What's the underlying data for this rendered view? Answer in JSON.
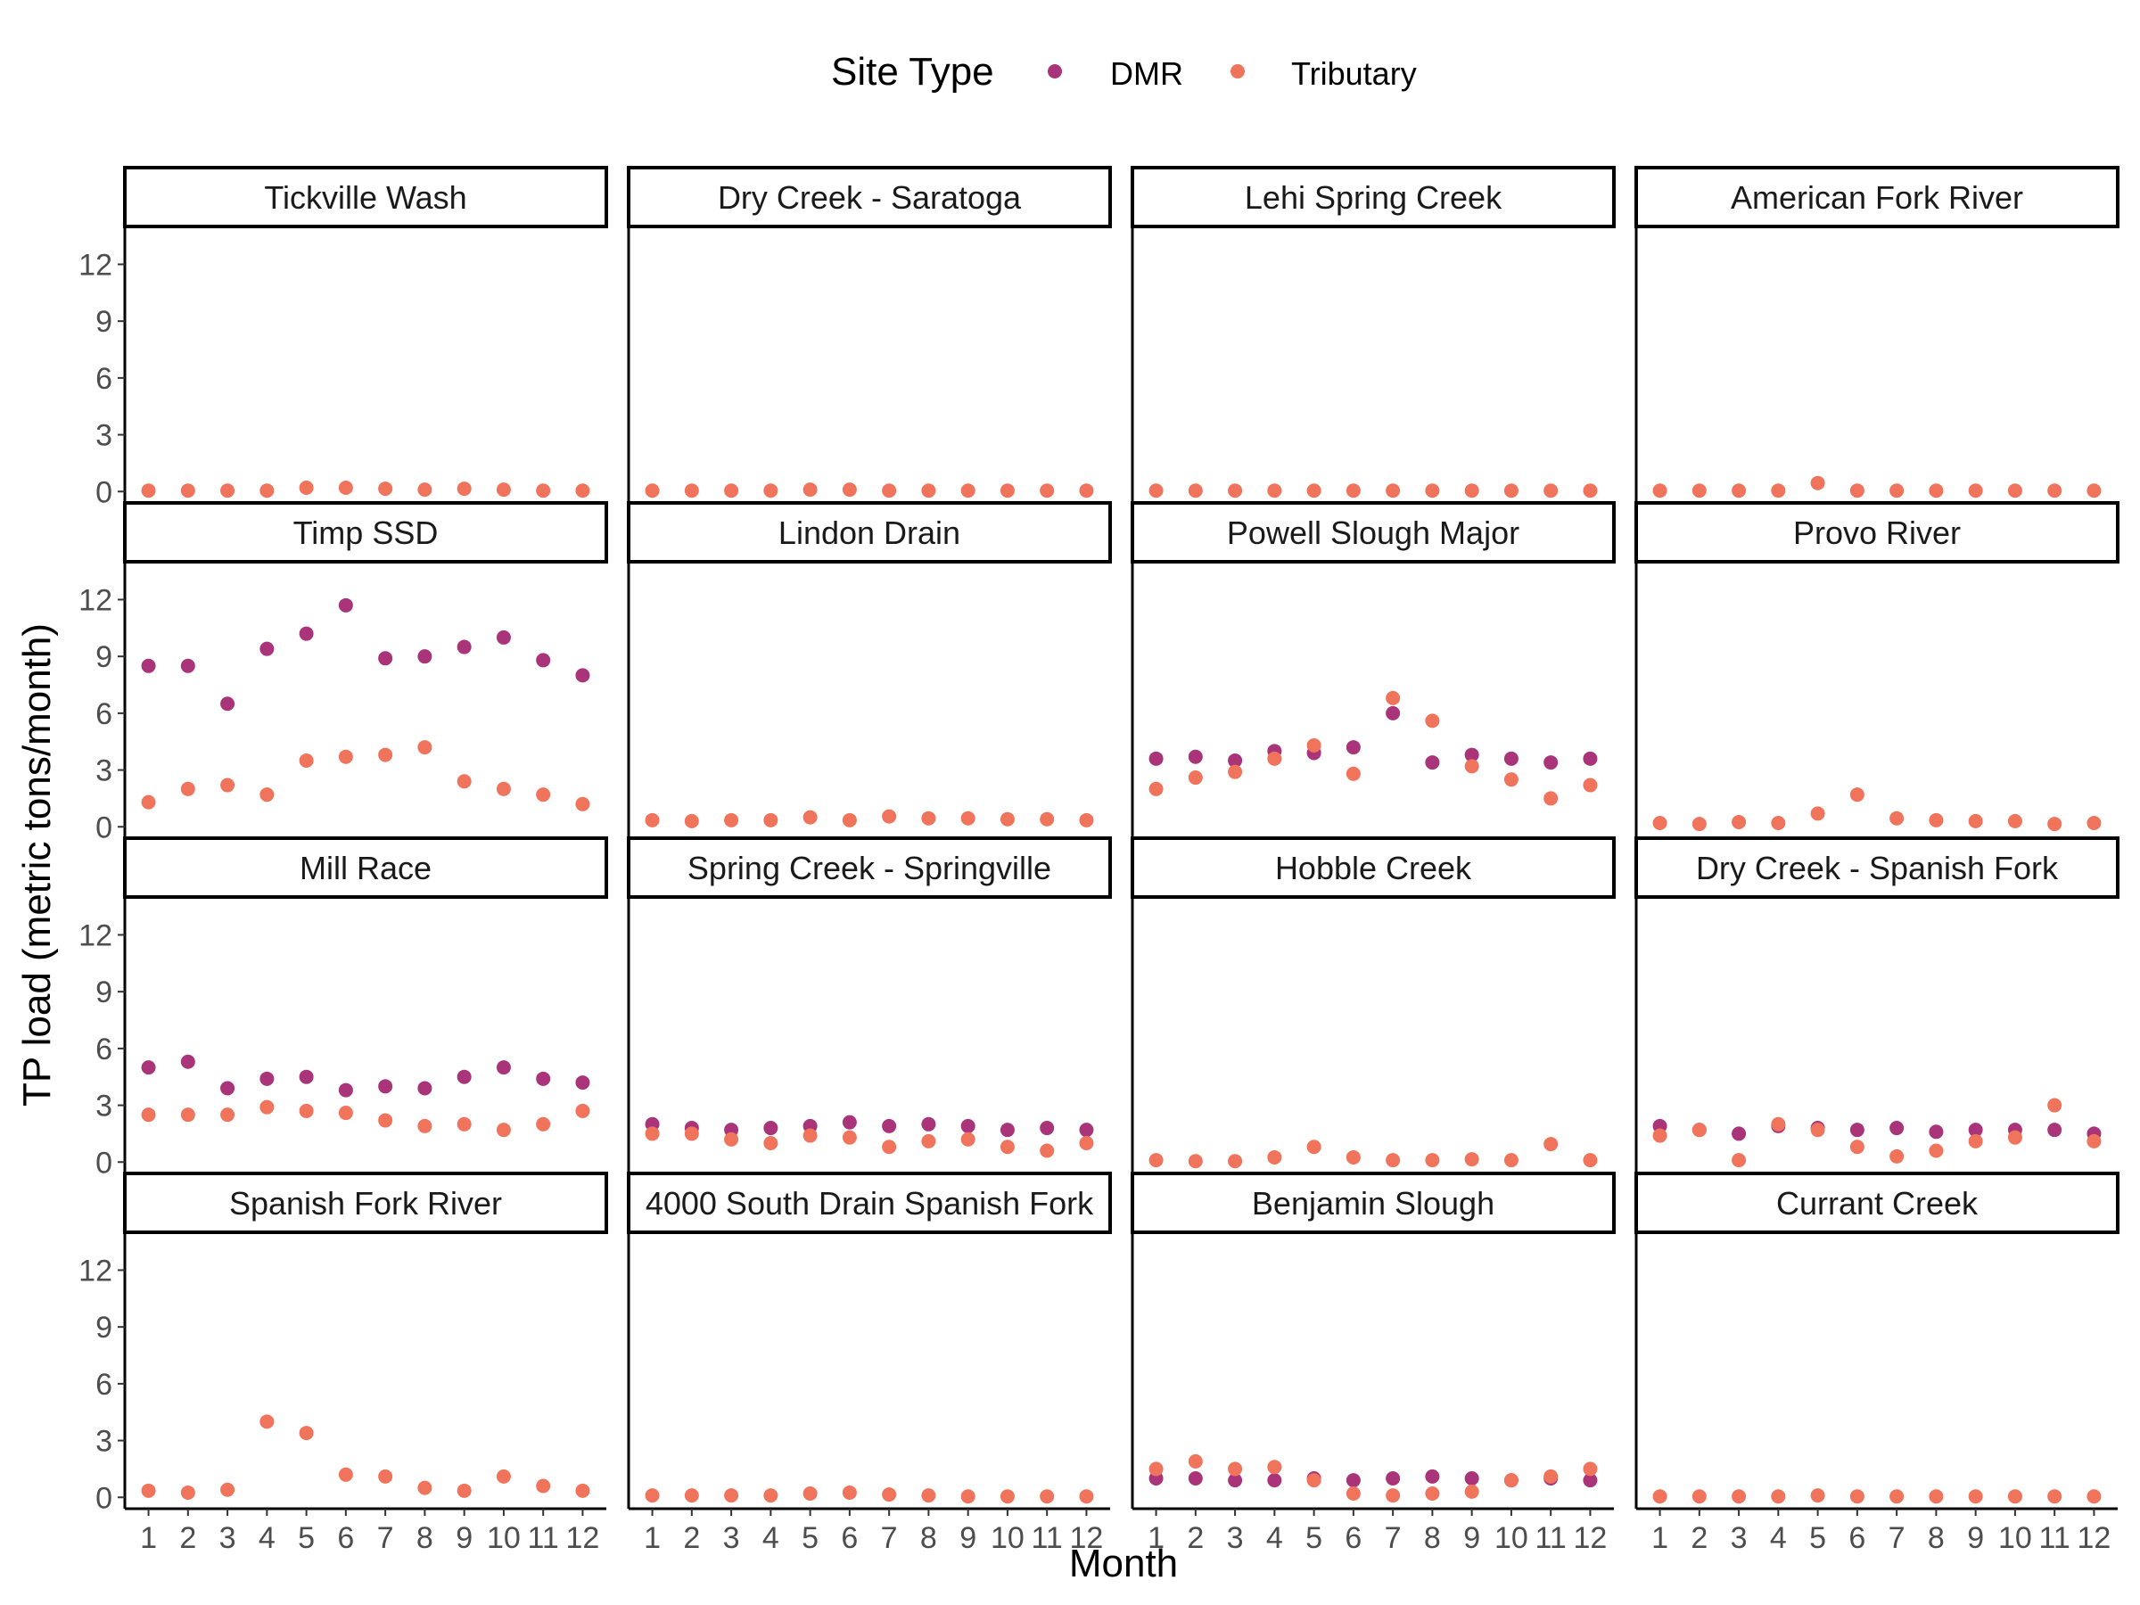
{
  "chart_data": {
    "type": "scatter",
    "xlabel": "Month",
    "ylabel": "TP load (metric tons/month)",
    "legend": {
      "title": "Site Type",
      "placement": "top",
      "entries": [
        {
          "name": "DMR",
          "color": "#A9347A"
        },
        {
          "name": "Tributary",
          "color": "#F0735C"
        }
      ]
    },
    "x_ticks": [
      "1",
      "2",
      "3",
      "4",
      "5",
      "6",
      "7",
      "8",
      "9",
      "10",
      "11",
      "12"
    ],
    "y_ticks": [
      "0",
      "3",
      "6",
      "9",
      "12"
    ],
    "ylim": [
      -0.6,
      14
    ],
    "xlim": [
      0.4,
      12.6
    ],
    "grid": false,
    "facet_columns": 4,
    "panels": [
      {
        "title": "Tickville Wash",
        "series": [
          {
            "name": "DMR",
            "values": []
          },
          {
            "name": "Tributary",
            "values": [
              0.05,
              0.05,
              0.05,
              0.05,
              0.2,
              0.2,
              0.15,
              0.1,
              0.15,
              0.1,
              0.05,
              0.05
            ]
          }
        ]
      },
      {
        "title": "Dry Creek - Saratoga",
        "series": [
          {
            "name": "DMR",
            "values": []
          },
          {
            "name": "Tributary",
            "values": [
              0.05,
              0.05,
              0.05,
              0.05,
              0.1,
              0.1,
              0.05,
              0.05,
              0.05,
              0.05,
              0.05,
              0.05
            ]
          }
        ]
      },
      {
        "title": "Lehi Spring Creek",
        "series": [
          {
            "name": "DMR",
            "values": []
          },
          {
            "name": "Tributary",
            "values": [
              0.05,
              0.05,
              0.05,
              0.05,
              0.05,
              0.05,
              0.05,
              0.05,
              0.05,
              0.05,
              0.05,
              0.05
            ]
          }
        ]
      },
      {
        "title": "American Fork River",
        "series": [
          {
            "name": "DMR",
            "values": []
          },
          {
            "name": "Tributary",
            "values": [
              0.05,
              0.05,
              0.05,
              0.05,
              0.45,
              0.05,
              0.05,
              0.05,
              0.05,
              0.05,
              0.05,
              0.05
            ]
          }
        ]
      },
      {
        "title": "Timp SSD",
        "series": [
          {
            "name": "DMR",
            "values": [
              8.5,
              8.5,
              6.5,
              9.4,
              10.2,
              11.7,
              8.9,
              9.0,
              9.5,
              10.0,
              8.8,
              8.0
            ]
          },
          {
            "name": "Tributary",
            "values": [
              1.3,
              2.0,
              2.2,
              1.7,
              3.5,
              3.7,
              3.8,
              4.2,
              2.4,
              2.0,
              1.7,
              1.2
            ]
          }
        ]
      },
      {
        "title": "Lindon Drain",
        "series": [
          {
            "name": "DMR",
            "values": []
          },
          {
            "name": "Tributary",
            "values": [
              0.35,
              0.3,
              0.35,
              0.35,
              0.5,
              0.35,
              0.55,
              0.45,
              0.45,
              0.4,
              0.4,
              0.35
            ]
          }
        ]
      },
      {
        "title": "Powell Slough Major",
        "series": [
          {
            "name": "DMR",
            "values": [
              3.6,
              3.7,
              3.5,
              4.0,
              3.9,
              4.2,
              6.0,
              3.4,
              3.8,
              3.6,
              3.4,
              3.6
            ]
          },
          {
            "name": "Tributary",
            "values": [
              2.0,
              2.6,
              2.9,
              3.6,
              4.3,
              2.8,
              6.8,
              5.6,
              3.2,
              2.5,
              1.5,
              2.2
            ]
          }
        ]
      },
      {
        "title": "Provo River",
        "series": [
          {
            "name": "DMR",
            "values": []
          },
          {
            "name": "Tributary",
            "values": [
              0.2,
              0.15,
              0.25,
              0.2,
              0.7,
              1.7,
              0.45,
              0.35,
              0.3,
              0.3,
              0.15,
              0.2
            ]
          }
        ]
      },
      {
        "title": "Mill Race",
        "series": [
          {
            "name": "DMR",
            "values": [
              5.0,
              5.3,
              3.9,
              4.4,
              4.5,
              3.8,
              4.0,
              3.9,
              4.5,
              5.0,
              4.4,
              4.2
            ]
          },
          {
            "name": "Tributary",
            "values": [
              2.5,
              2.5,
              2.5,
              2.9,
              2.7,
              2.6,
              2.2,
              1.9,
              2.0,
              1.7,
              2.0,
              2.7
            ]
          }
        ]
      },
      {
        "title": "Spring Creek - Springville",
        "series": [
          {
            "name": "DMR",
            "values": [
              2.0,
              1.8,
              1.7,
              1.8,
              1.9,
              2.1,
              1.9,
              2.0,
              1.9,
              1.7,
              1.8,
              1.7
            ]
          },
          {
            "name": "Tributary",
            "values": [
              1.5,
              1.5,
              1.2,
              1.0,
              1.4,
              1.3,
              0.8,
              1.1,
              1.2,
              0.8,
              0.6,
              1.0
            ]
          }
        ]
      },
      {
        "title": "Hobble Creek",
        "series": [
          {
            "name": "DMR",
            "values": []
          },
          {
            "name": "Tributary",
            "values": [
              0.1,
              0.05,
              0.05,
              0.25,
              0.8,
              0.25,
              0.1,
              0.1,
              0.15,
              0.1,
              0.95,
              0.1
            ]
          }
        ]
      },
      {
        "title": "Dry Creek - Spanish Fork",
        "series": [
          {
            "name": "DMR",
            "values": [
              1.9,
              1.7,
              1.5,
              1.9,
              1.8,
              1.7,
              1.8,
              1.6,
              1.7,
              1.7,
              1.7,
              1.5
            ]
          },
          {
            "name": "Tributary",
            "values": [
              1.4,
              1.7,
              0.1,
              2.0,
              1.7,
              0.8,
              0.3,
              0.6,
              1.1,
              1.3,
              3.0,
              1.1
            ]
          }
        ]
      },
      {
        "title": "Spanish Fork River",
        "series": [
          {
            "name": "DMR",
            "values": []
          },
          {
            "name": "Tributary",
            "values": [
              0.35,
              0.25,
              0.4,
              4.0,
              3.4,
              1.2,
              1.1,
              0.5,
              0.35,
              1.1,
              0.6,
              0.35
            ]
          }
        ]
      },
      {
        "title": "4000 South Drain Spanish Fork",
        "series": [
          {
            "name": "DMR",
            "values": []
          },
          {
            "name": "Tributary",
            "values": [
              0.1,
              0.1,
              0.1,
              0.1,
              0.2,
              0.25,
              0.15,
              0.1,
              0.05,
              0.05,
              0.05,
              0.05
            ]
          }
        ]
      },
      {
        "title": "Benjamin Slough",
        "series": [
          {
            "name": "DMR",
            "values": [
              1.0,
              1.0,
              0.9,
              0.9,
              1.0,
              0.9,
              1.0,
              1.1,
              1.0,
              0.9,
              1.0,
              0.9
            ]
          },
          {
            "name": "Tributary",
            "values": [
              1.5,
              1.9,
              1.5,
              1.6,
              0.9,
              0.2,
              0.1,
              0.2,
              0.3,
              0.9,
              1.1,
              1.5
            ]
          }
        ]
      },
      {
        "title": "Currant Creek",
        "series": [
          {
            "name": "DMR",
            "values": []
          },
          {
            "name": "Tributary",
            "values": [
              0.05,
              0.05,
              0.05,
              0.05,
              0.1,
              0.05,
              0.05,
              0.05,
              0.05,
              0.05,
              0.05,
              0.05
            ]
          }
        ]
      }
    ]
  }
}
